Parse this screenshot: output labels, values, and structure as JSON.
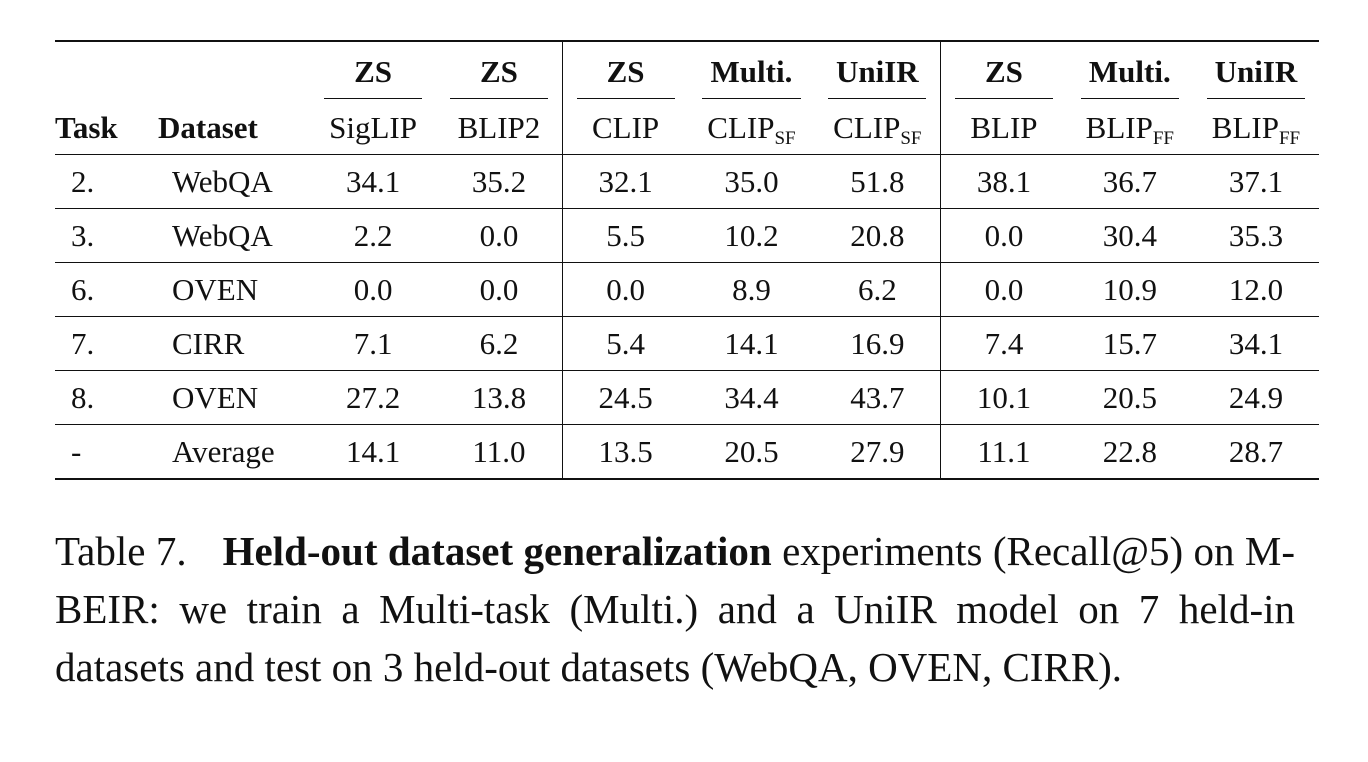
{
  "table": {
    "group_headers": [
      {
        "label": "ZS"
      },
      {
        "label": "ZS"
      },
      {
        "label": "ZS"
      },
      {
        "label": "Multi."
      },
      {
        "label": "UniIR"
      },
      {
        "label": "ZS"
      },
      {
        "label": "Multi."
      },
      {
        "label": "UniIR"
      }
    ],
    "task_header": "Task",
    "dataset_header": "Dataset",
    "models": [
      {
        "base": "SigLIP",
        "sub": ""
      },
      {
        "base": "BLIP2",
        "sub": ""
      },
      {
        "base": "CLIP",
        "sub": ""
      },
      {
        "base": "CLIP",
        "sub": "SF"
      },
      {
        "base": "CLIP",
        "sub": "SF"
      },
      {
        "base": "BLIP",
        "sub": ""
      },
      {
        "base": "BLIP",
        "sub": "FF"
      },
      {
        "base": "BLIP",
        "sub": "FF"
      }
    ],
    "rows": [
      {
        "task": "2.",
        "dataset": "WebQA",
        "values": [
          "34.1",
          "35.2",
          "32.1",
          "35.0",
          "51.8",
          "38.1",
          "36.7",
          "37.1"
        ]
      },
      {
        "task": "3.",
        "dataset": "WebQA",
        "values": [
          "2.2",
          "0.0",
          "5.5",
          "10.2",
          "20.8",
          "0.0",
          "30.4",
          "35.3"
        ]
      },
      {
        "task": "6.",
        "dataset": "OVEN",
        "values": [
          "0.0",
          "0.0",
          "0.0",
          "8.9",
          "6.2",
          "0.0",
          "10.9",
          "12.0"
        ]
      },
      {
        "task": "7.",
        "dataset": "CIRR",
        "values": [
          "7.1",
          "6.2",
          "5.4",
          "14.1",
          "16.9",
          "7.4",
          "15.7",
          "34.1"
        ]
      },
      {
        "task": "8.",
        "dataset": "OVEN",
        "values": [
          "27.2",
          "13.8",
          "24.5",
          "34.4",
          "43.7",
          "10.1",
          "20.5",
          "24.9"
        ]
      },
      {
        "task": "-",
        "dataset": "Average",
        "values": [
          "14.1",
          "11.0",
          "13.5",
          "20.5",
          "27.9",
          "11.1",
          "22.8",
          "28.7"
        ]
      }
    ]
  },
  "caption": {
    "label": "Table 7.",
    "bold": "Held-out dataset generalization",
    "text": "experiments (Recall@5) on M-BEIR: we train a Multi-task (Multi.) and a UniIR model on 7 held-in datasets and test on 3 held-out datasets (WebQA, OVEN, CIRR)."
  }
}
